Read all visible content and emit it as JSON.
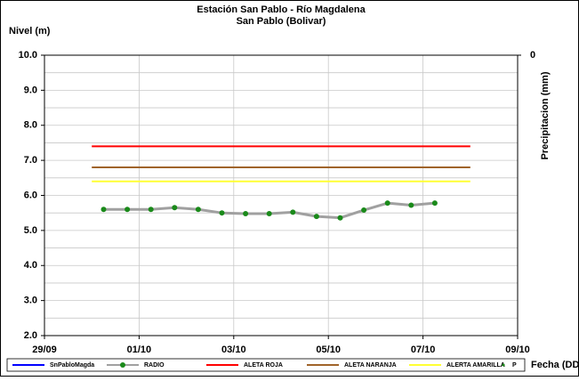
{
  "chart_data": {
    "type": "line",
    "title": "Estación San Pablo - Río Magdalena",
    "subtitle": "San Pablo (Bolivar)",
    "ylabel": "Nivel (m)",
    "y2label": "Precipitacion (mm)",
    "xlabel": "Fecha (DD/MM)",
    "xlim": [
      0,
      10
    ],
    "xticks": [
      {
        "value": 0,
        "label": "29/09"
      },
      {
        "value": 2,
        "label": "01/10"
      },
      {
        "value": 4,
        "label": "03/10"
      },
      {
        "value": 6,
        "label": "05/10"
      },
      {
        "value": 8,
        "label": "07/10"
      },
      {
        "value": 10,
        "label": "09/10"
      }
    ],
    "ylim": [
      2,
      10
    ],
    "yticks": [
      {
        "value": 2,
        "label": "2.0"
      },
      {
        "value": 3,
        "label": "3.0"
      },
      {
        "value": 4,
        "label": "4.0"
      },
      {
        "value": 5,
        "label": "5.0"
      },
      {
        "value": 6,
        "label": "6.0"
      },
      {
        "value": 7,
        "label": "7.0"
      },
      {
        "value": 8,
        "label": "8.0"
      },
      {
        "value": 9,
        "label": "9.0"
      },
      {
        "value": 10,
        "label": "10.0"
      }
    ],
    "yminorticks": [
      2.5,
      3.5,
      4.5,
      5.5,
      6.5,
      7.5,
      8.5,
      9.5
    ],
    "y2ticks": [
      0
    ],
    "grid": true,
    "legend": "bottom",
    "series": [
      {
        "name": "SnPabloMagda",
        "color": "#0000ff",
        "x": [],
        "values": []
      },
      {
        "name": "RADIO",
        "color": "#a0a0a0",
        "marker_color": "#1a8a1a",
        "x": [
          1.25,
          1.75,
          2.25,
          2.75,
          3.25,
          3.75,
          4.25,
          4.75,
          5.25,
          5.75,
          6.25,
          6.75,
          7.25,
          7.75,
          8.25
        ],
        "values": [
          5.6,
          5.6,
          5.6,
          5.65,
          5.6,
          5.5,
          5.48,
          5.48,
          5.52,
          5.4,
          5.36,
          5.58,
          5.78,
          5.72,
          5.78
        ]
      },
      {
        "name": "ALETA ROJA",
        "color": "#ff0000",
        "x": [
          1,
          9
        ],
        "values": [
          7.4,
          7.4
        ]
      },
      {
        "name": "ALETA NARANJA",
        "color": "#a0642a",
        "x": [
          1,
          9
        ],
        "values": [
          6.8,
          6.8
        ]
      },
      {
        "name": "ALERTA AMARILLA",
        "color": "#ffff33",
        "x": [
          1,
          9
        ],
        "values": [
          6.4,
          6.4
        ]
      },
      {
        "name": "P",
        "color": "#1a8a1a",
        "x": [],
        "values": []
      }
    ]
  }
}
